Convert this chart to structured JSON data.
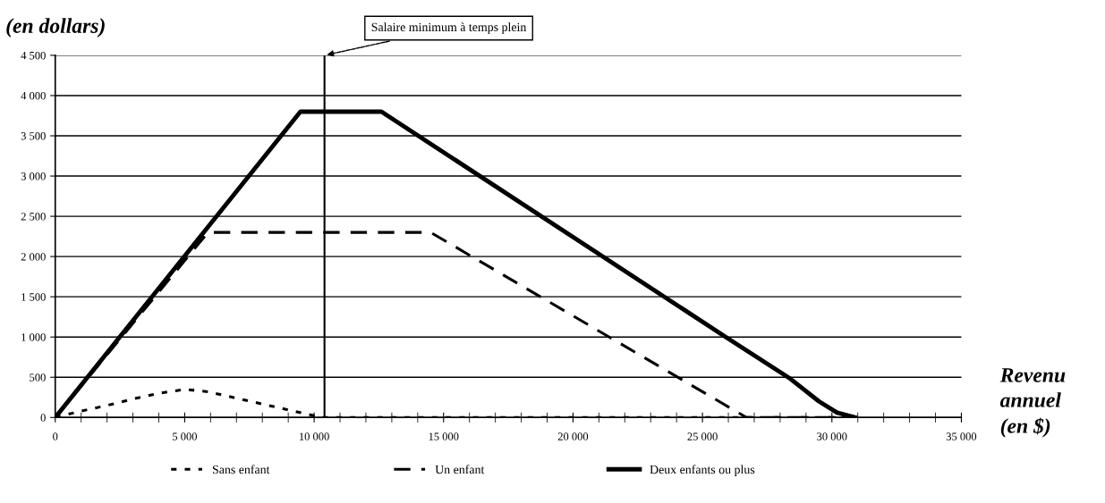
{
  "chart_data": {
    "type": "line",
    "ylabel": "(en dollars)",
    "xlabel": "Revenu\nannuel\n(en $)",
    "xlim": [
      0,
      35000
    ],
    "xticks": [
      {
        "value": 0,
        "label": "0"
      },
      {
        "value": 5000,
        "label": "5 000"
      },
      {
        "value": 10000,
        "label": "10 000"
      },
      {
        "value": 15000,
        "label": "15 000"
      },
      {
        "value": 20000,
        "label": "20 000"
      },
      {
        "value": 25000,
        "label": "25 000"
      },
      {
        "value": 30000,
        "label": "30 000"
      },
      {
        "value": 35000,
        "label": "35 000"
      }
    ],
    "ylim": [
      0,
      4500
    ],
    "yticks": [
      {
        "value": 0,
        "label": "0"
      },
      {
        "value": 500,
        "label": "500"
      },
      {
        "value": 1000,
        "label": "1 000"
      },
      {
        "value": 1500,
        "label": "1 500"
      },
      {
        "value": 2000,
        "label": "2 000"
      },
      {
        "value": 2500,
        "label": "2 500"
      },
      {
        "value": 3000,
        "label": "3 000"
      },
      {
        "value": 3500,
        "label": "3 500"
      },
      {
        "value": 4000,
        "label": "4 000"
      },
      {
        "value": 4500,
        "label": "4 500"
      }
    ],
    "grid": "y",
    "legend": "bottom",
    "ref_lines": [
      {
        "axis": "x",
        "value": 10400,
        "label": "Salaire minimum à temps plein",
        "color": "#000000"
      }
    ],
    "series": [
      {
        "name": "Sans enfant",
        "color": "#000000",
        "line_style": "dotted",
        "x": [
          0,
          1000,
          2000,
          3000,
          4000,
          5000,
          5900,
          10300,
          31000
        ],
        "values": [
          0,
          80,
          150,
          230,
          300,
          350,
          320,
          0,
          0
        ]
      },
      {
        "name": "Un enfant",
        "color": "#000000",
        "line_style": "dashed",
        "x": [
          0,
          5900,
          14500,
          26700,
          31000
        ],
        "values": [
          0,
          2300,
          2300,
          0,
          0
        ]
      },
      {
        "name": "Deux enfants ou plus",
        "color": "#000000",
        "line_style": "solid",
        "x": [
          0,
          9470,
          12600,
          25900,
          28400,
          29500,
          30200,
          30900
        ],
        "values": [
          0,
          3800,
          3800,
          1000,
          480,
          200,
          60,
          0
        ]
      }
    ]
  }
}
